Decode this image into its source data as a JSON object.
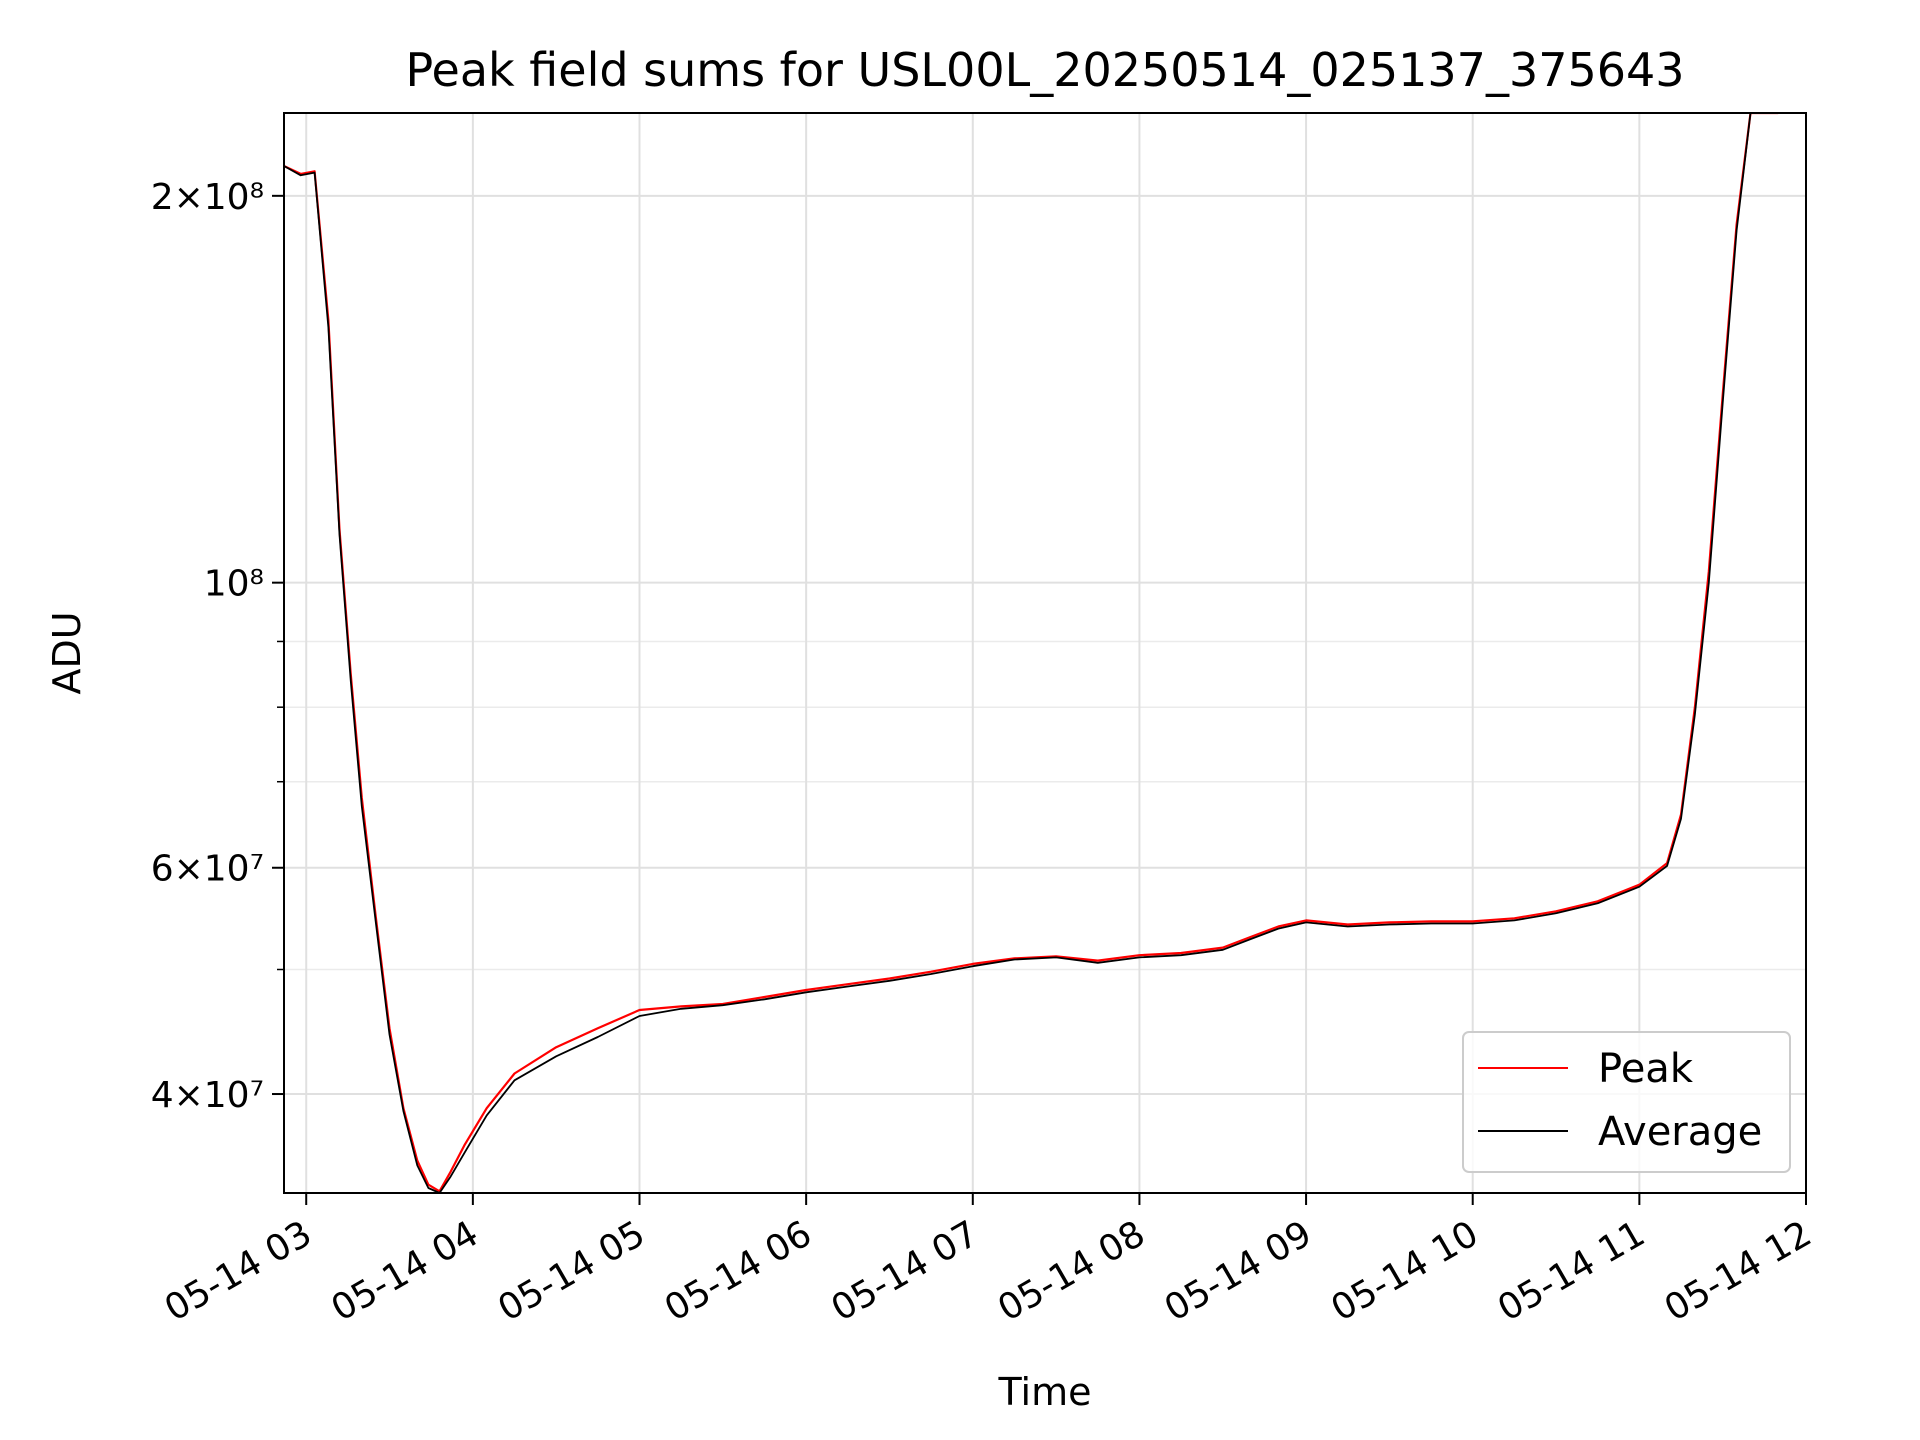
{
  "chart_data": {
    "type": "line",
    "title": "Peak field sums for USL00L_20250514_025137_375643",
    "xlabel": "Time",
    "ylabel": "ADU",
    "y_scale": "log",
    "grid": true,
    "legend_placement": "lower-right",
    "x_range": [
      "2025-05-14 02:52",
      "2025-05-14 12:00"
    ],
    "y_range": [
      33500000,
      232000000
    ],
    "x_ticks": [
      "05-14 03",
      "05-14 04",
      "05-14 05",
      "05-14 06",
      "05-14 07",
      "05-14 08",
      "05-14 09",
      "05-14 10",
      "05-14 11",
      "05-14 12"
    ],
    "y_ticks": [
      {
        "value": 40000000,
        "label": "4×10⁷"
      },
      {
        "value": 60000000,
        "label": "6×10⁷"
      },
      {
        "value": 100000000,
        "label": "10⁸"
      },
      {
        "value": 200000000,
        "label": "2×10⁸"
      }
    ],
    "series": [
      {
        "name": "Peak",
        "color": "#ff0000",
        "x": [
          "02:52",
          "02:58",
          "03:03",
          "03:08",
          "03:12",
          "03:16",
          "03:20",
          "03:25",
          "03:30",
          "03:35",
          "03:40",
          "03:44",
          "03:48",
          "03:52",
          "03:57",
          "04:05",
          "04:15",
          "04:30",
          "04:45",
          "05:00",
          "05:15",
          "05:30",
          "05:45",
          "06:00",
          "06:15",
          "06:30",
          "06:45",
          "07:00",
          "07:15",
          "07:30",
          "07:45",
          "08:00",
          "08:15",
          "08:30",
          "08:40",
          "08:50",
          "09:00",
          "09:15",
          "09:30",
          "09:45",
          "10:00",
          "10:15",
          "10:30",
          "10:45",
          "11:00",
          "11:10",
          "11:15",
          "11:20",
          "11:25",
          "11:30",
          "11:35",
          "11:40",
          "11:45",
          "11:50"
        ],
        "y": [
          211000000,
          208000000,
          209000000,
          160000000,
          110000000,
          85000000,
          68000000,
          55000000,
          45000000,
          39000000,
          35500000,
          34000000,
          33600000,
          34800000,
          36500000,
          39000000,
          41500000,
          43500000,
          45000000,
          46500000,
          46800000,
          47000000,
          47600000,
          48200000,
          48700000,
          49200000,
          49800000,
          50500000,
          51000000,
          51200000,
          50800000,
          51300000,
          51500000,
          52000000,
          53000000,
          54000000,
          54600000,
          54200000,
          54400000,
          54500000,
          54500000,
          54800000,
          55500000,
          56500000,
          58200000,
          60500000,
          66000000,
          80000000,
          102000000,
          140000000,
          190000000,
          232000000,
          232000000,
          232000000
        ]
      },
      {
        "name": "Average",
        "color": "#000000",
        "x": [
          "02:52",
          "02:58",
          "03:03",
          "03:08",
          "03:12",
          "03:16",
          "03:20",
          "03:25",
          "03:30",
          "03:35",
          "03:40",
          "03:44",
          "03:48",
          "03:52",
          "03:57",
          "04:05",
          "04:15",
          "04:30",
          "04:45",
          "05:00",
          "05:15",
          "05:30",
          "05:45",
          "06:00",
          "06:15",
          "06:30",
          "06:45",
          "07:00",
          "07:15",
          "07:30",
          "07:45",
          "08:00",
          "08:15",
          "08:30",
          "08:40",
          "08:50",
          "09:00",
          "09:15",
          "09:30",
          "09:45",
          "10:00",
          "10:15",
          "10:30",
          "10:45",
          "11:00",
          "11:10",
          "11:15",
          "11:20",
          "11:25",
          "11:30",
          "11:35",
          "11:40",
          "11:45",
          "11:50"
        ],
        "y": [
          211000000,
          207500000,
          208500000,
          158000000,
          109000000,
          84000000,
          67000000,
          54500000,
          44500000,
          38800000,
          35200000,
          33800000,
          33500000,
          34500000,
          36000000,
          38500000,
          41000000,
          42800000,
          44300000,
          46000000,
          46600000,
          46900000,
          47400000,
          48000000,
          48500000,
          49000000,
          49600000,
          50300000,
          50900000,
          51100000,
          50600000,
          51100000,
          51300000,
          51800000,
          52800000,
          53800000,
          54400000,
          54000000,
          54200000,
          54300000,
          54300000,
          54600000,
          55300000,
          56300000,
          58000000,
          60200000,
          65500000,
          79000000,
          100000000,
          138000000,
          188000000,
          232000000,
          232000000,
          232000000
        ]
      }
    ]
  }
}
